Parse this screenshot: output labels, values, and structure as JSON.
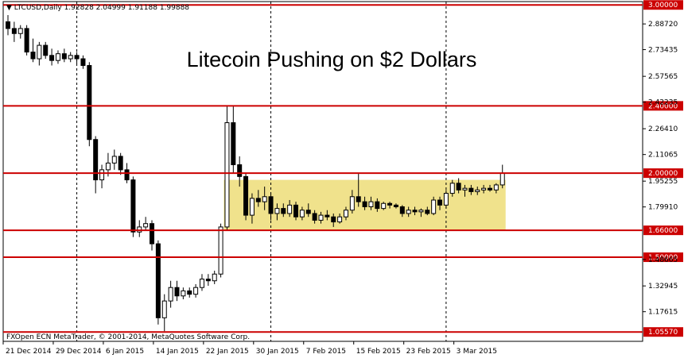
{
  "header": {
    "symbol": "LTCUSD,Daily",
    "ohlc": "1.92828 2.04999 1.91188 1.99888"
  },
  "footer": {
    "copyright": "FXOpen ECN MetaTrader, © 2001-2014, MetaQuotes Software Corp."
  },
  "colors": {
    "bull": "#ffffff",
    "bear": "#000000",
    "level": "#cc0000",
    "zone": "#f0e28c",
    "grid": "#000000"
  },
  "chart_data": {
    "type": "candlestick",
    "title": "Litecoin Pushing on $2 Dollars",
    "symbol": "LTCUSD",
    "timeframe": "Daily",
    "ylim": [
      1.0,
      3.02
    ],
    "y_ticks": [
      "2.88720",
      "2.73435",
      "2.57565",
      "2.42235",
      "2.26410",
      "2.11065",
      "1.95255",
      "1.79910",
      "1.48665",
      "1.32945",
      "1.17615"
    ],
    "x_ticks": [
      "21 Dec 2014",
      "29 Dec 2014",
      "6 Jan 2015",
      "14 Jan 2015",
      "22 Jan 2015",
      "30 Jan 2015",
      "7 Feb 2015",
      "15 Feb 2015",
      "23 Feb 2015",
      "3 Mar 2015"
    ],
    "x_tick_bars": [
      0,
      8,
      16,
      24,
      32,
      40,
      48,
      56,
      64,
      72
    ],
    "grid_dates_bars": [
      11,
      42,
      70
    ],
    "levels": [
      {
        "label": "3.00000",
        "value": 3.0
      },
      {
        "label": "2.40000",
        "value": 2.4
      },
      {
        "label": "2.00000",
        "value": 2.0
      },
      {
        "label": "1.66000",
        "value": 1.66
      },
      {
        "label": "1.50000",
        "value": 1.5
      },
      {
        "label": "1.05570",
        "value": 1.0557
      }
    ],
    "zone": {
      "from_bar": 35,
      "to_bar": 79,
      "low": 1.66,
      "high": 1.96
    },
    "candles": [
      [
        2.9,
        2.94,
        2.82,
        2.86
      ],
      [
        2.86,
        2.9,
        2.78,
        2.83
      ],
      [
        2.83,
        2.88,
        2.8,
        2.86
      ],
      [
        2.86,
        2.88,
        2.7,
        2.72
      ],
      [
        2.72,
        2.8,
        2.66,
        2.68
      ],
      [
        2.68,
        2.78,
        2.64,
        2.76
      ],
      [
        2.76,
        2.78,
        2.68,
        2.7
      ],
      [
        2.7,
        2.74,
        2.64,
        2.67
      ],
      [
        2.67,
        2.73,
        2.65,
        2.71
      ],
      [
        2.71,
        2.74,
        2.66,
        2.68
      ],
      [
        2.68,
        2.72,
        2.66,
        2.7
      ],
      [
        2.7,
        2.72,
        2.65,
        2.68
      ],
      [
        2.68,
        2.7,
        2.62,
        2.64
      ],
      [
        2.64,
        2.66,
        2.16,
        2.2
      ],
      [
        2.2,
        2.22,
        1.88,
        1.96
      ],
      [
        1.96,
        2.05,
        1.91,
        2.02
      ],
      [
        2.02,
        2.12,
        1.98,
        2.06
      ],
      [
        2.06,
        2.14,
        2.02,
        2.1
      ],
      [
        2.1,
        2.12,
        1.99,
        2.02
      ],
      [
        2.02,
        2.06,
        1.94,
        1.96
      ],
      [
        1.96,
        1.98,
        1.62,
        1.65
      ],
      [
        1.65,
        1.72,
        1.62,
        1.68
      ],
      [
        1.68,
        1.74,
        1.66,
        1.7
      ],
      [
        1.7,
        1.72,
        1.54,
        1.58
      ],
      [
        1.58,
        1.6,
        1.1,
        1.14
      ],
      [
        1.14,
        1.28,
        1.06,
        1.24
      ],
      [
        1.24,
        1.36,
        1.2,
        1.32
      ],
      [
        1.32,
        1.36,
        1.24,
        1.27
      ],
      [
        1.27,
        1.32,
        1.25,
        1.3
      ],
      [
        1.3,
        1.32,
        1.26,
        1.28
      ],
      [
        1.28,
        1.34,
        1.26,
        1.32
      ],
      [
        1.32,
        1.4,
        1.3,
        1.37
      ],
      [
        1.37,
        1.4,
        1.33,
        1.36
      ],
      [
        1.36,
        1.42,
        1.34,
        1.4
      ],
      [
        1.4,
        1.7,
        1.38,
        1.68
      ],
      [
        1.68,
        2.4,
        1.66,
        2.3
      ],
      [
        2.3,
        2.4,
        2.0,
        2.05
      ],
      [
        2.05,
        2.1,
        1.92,
        1.98
      ],
      [
        1.98,
        2.0,
        1.72,
        1.75
      ],
      [
        1.75,
        1.88,
        1.7,
        1.85
      ],
      [
        1.85,
        1.9,
        1.8,
        1.83
      ],
      [
        1.83,
        1.92,
        1.78,
        1.86
      ],
      [
        1.86,
        1.88,
        1.72,
        1.76
      ],
      [
        1.76,
        1.82,
        1.72,
        1.79
      ],
      [
        1.79,
        1.82,
        1.74,
        1.76
      ],
      [
        1.76,
        1.84,
        1.74,
        1.81
      ],
      [
        1.81,
        1.83,
        1.72,
        1.74
      ],
      [
        1.74,
        1.8,
        1.72,
        1.78
      ],
      [
        1.78,
        1.82,
        1.74,
        1.76
      ],
      [
        1.76,
        1.78,
        1.7,
        1.72
      ],
      [
        1.72,
        1.77,
        1.7,
        1.75
      ],
      [
        1.75,
        1.78,
        1.72,
        1.74
      ],
      [
        1.74,
        1.76,
        1.68,
        1.71
      ],
      [
        1.71,
        1.76,
        1.7,
        1.74
      ],
      [
        1.74,
        1.8,
        1.72,
        1.78
      ],
      [
        1.78,
        1.9,
        1.76,
        1.86
      ],
      [
        1.86,
        2.0,
        1.8,
        1.83
      ],
      [
        1.83,
        1.86,
        1.78,
        1.8
      ],
      [
        1.8,
        1.86,
        1.78,
        1.83
      ],
      [
        1.83,
        1.85,
        1.77,
        1.79
      ],
      [
        1.79,
        1.83,
        1.78,
        1.82
      ],
      [
        1.82,
        1.83,
        1.79,
        1.81
      ],
      [
        1.81,
        1.82,
        1.79,
        1.8
      ],
      [
        1.8,
        1.81,
        1.74,
        1.76
      ],
      [
        1.76,
        1.8,
        1.74,
        1.78
      ],
      [
        1.78,
        1.8,
        1.75,
        1.77
      ],
      [
        1.77,
        1.79,
        1.74,
        1.78
      ],
      [
        1.78,
        1.8,
        1.75,
        1.76
      ],
      [
        1.76,
        1.86,
        1.75,
        1.84
      ],
      [
        1.84,
        1.86,
        1.78,
        1.81
      ],
      [
        1.81,
        1.9,
        1.79,
        1.88
      ],
      [
        1.88,
        1.96,
        1.86,
        1.94
      ],
      [
        1.94,
        1.97,
        1.88,
        1.9
      ],
      [
        1.9,
        1.93,
        1.86,
        1.91
      ],
      [
        1.91,
        1.93,
        1.87,
        1.89
      ],
      [
        1.89,
        1.92,
        1.87,
        1.9
      ],
      [
        1.9,
        1.93,
        1.88,
        1.91
      ],
      [
        1.91,
        1.93,
        1.89,
        1.9
      ],
      [
        1.9,
        1.94,
        1.88,
        1.93
      ],
      [
        1.93,
        2.05,
        1.91,
        2.0
      ]
    ]
  }
}
